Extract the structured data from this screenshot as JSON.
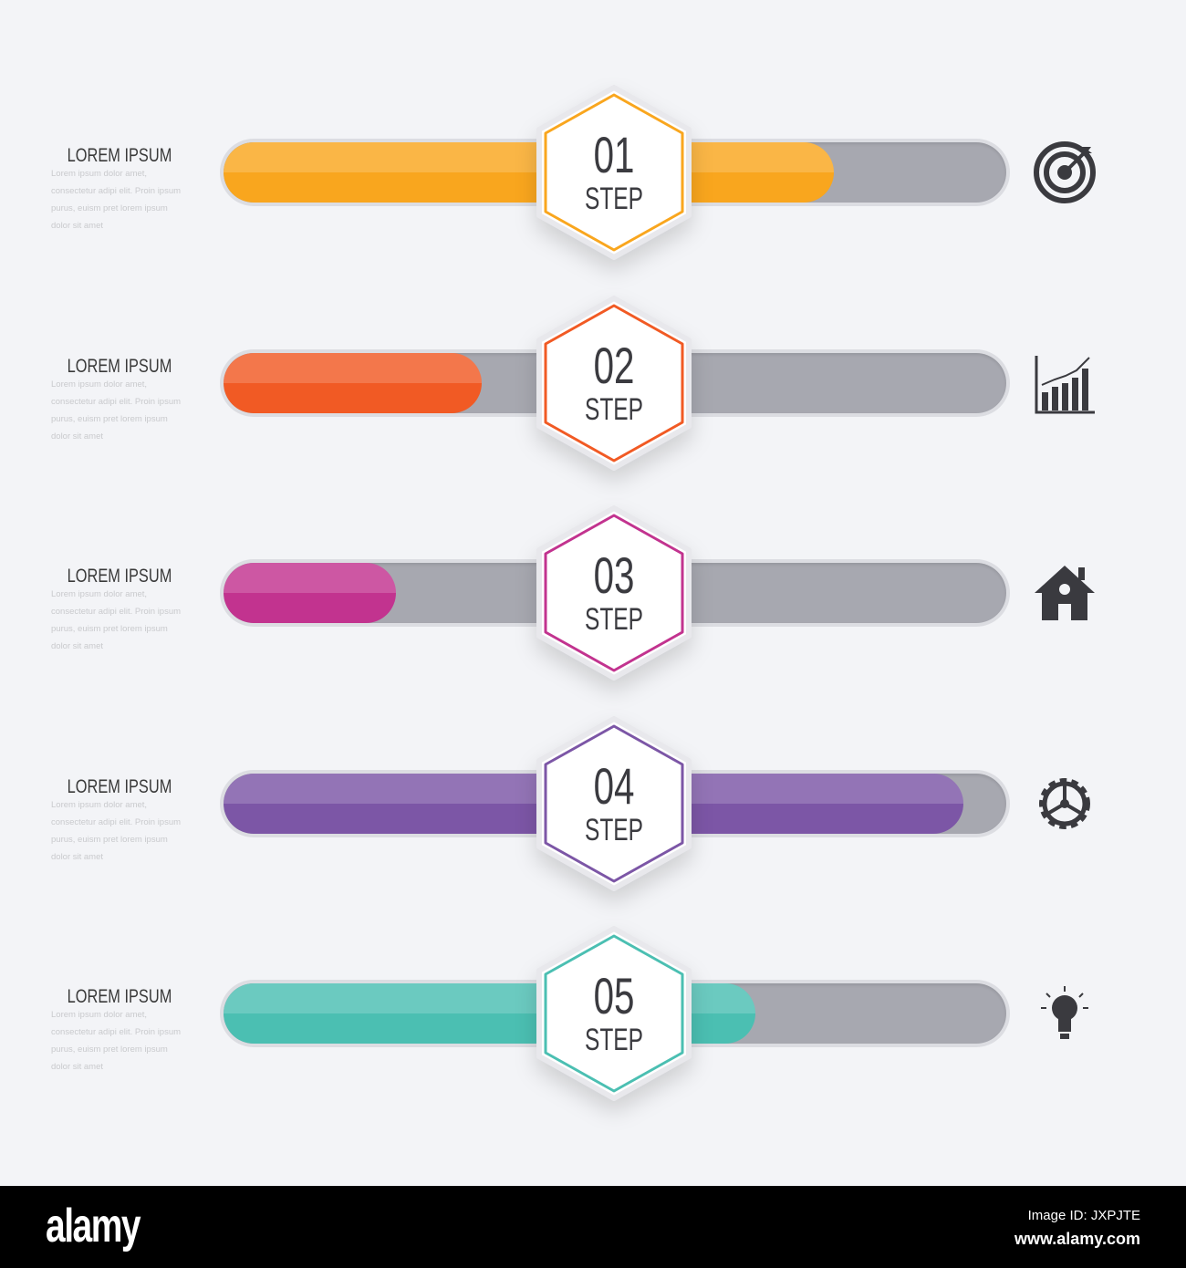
{
  "colors": {
    "track": "#a7a8b0",
    "text": "#3b3b40",
    "background": "#f3f4f7"
  },
  "steps": [
    {
      "number": "01",
      "label": "STEP",
      "title": "LOREM IPSUM",
      "description": "Lorem ipsum dolor amet, consectetur adipi elit. Proin ipsum purus, euism pret lorem ipsum dolor sit amet",
      "progress": 0.78,
      "color": "#f9a61e",
      "icon": "target-icon"
    },
    {
      "number": "02",
      "label": "STEP",
      "title": "LOREM IPSUM",
      "description": "Lorem ipsum dolor amet, consectetur adipi elit. Proin ipsum purus, euism pret lorem ipsum dolor sit amet",
      "progress": 0.33,
      "color": "#f15a24",
      "icon": "bar-chart-icon"
    },
    {
      "number": "03",
      "label": "STEP",
      "title": "LOREM IPSUM",
      "description": "Lorem ipsum dolor amet, consectetur adipi elit. Proin ipsum purus, euism pret lorem ipsum dolor sit amet",
      "progress": 0.22,
      "color": "#c2338f",
      "icon": "house-icon"
    },
    {
      "number": "04",
      "label": "STEP",
      "title": "LOREM IPSUM",
      "description": "Lorem ipsum dolor amet, consectetur adipi elit. Proin ipsum purus, euism pret lorem ipsum dolor sit amet",
      "progress": 0.945,
      "color": "#7c56a6",
      "icon": "gear-icon"
    },
    {
      "number": "05",
      "label": "STEP",
      "title": "LOREM IPSUM",
      "description": "Lorem ipsum dolor amet, consectetur adipi elit. Proin ipsum purus, euism pret lorem ipsum dolor sit amet",
      "progress": 0.68,
      "color": "#4bbfb2",
      "icon": "lightbulb-icon"
    }
  ],
  "footer": {
    "logo": "alamy",
    "image_id": "Image ID: JXPJTE",
    "url": "www.alamy.com"
  }
}
